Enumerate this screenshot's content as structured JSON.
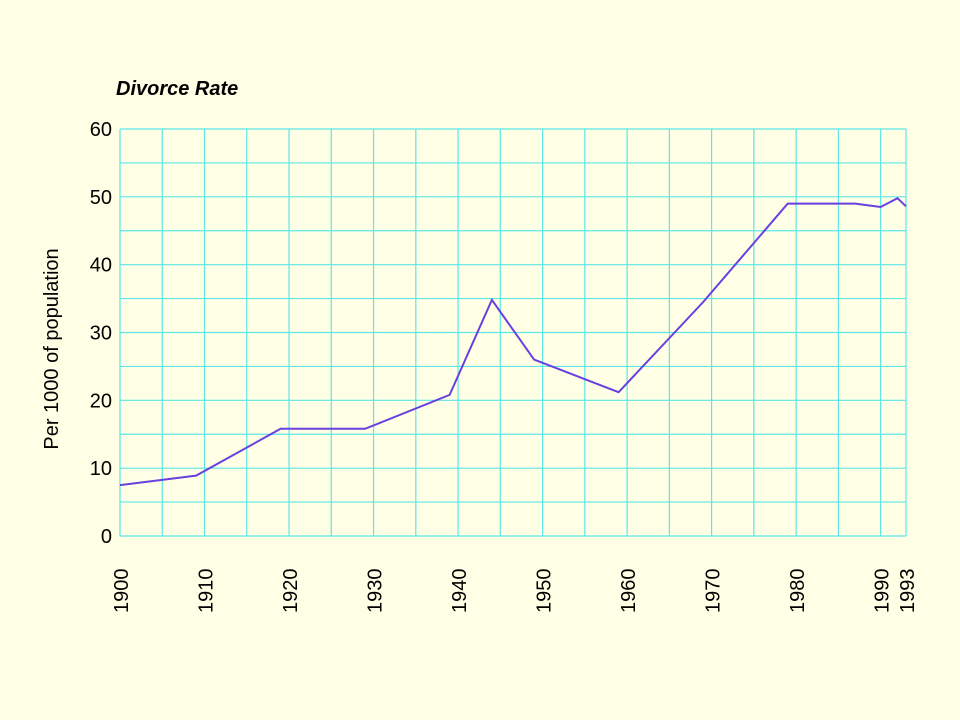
{
  "chart_data": {
    "type": "line",
    "title": "Divorce Rate",
    "xlabel": "",
    "ylabel": "Per 1000 of population",
    "x_tick_labels": [
      "1900",
      "1910",
      "1920",
      "1930",
      "1940",
      "1950",
      "1960",
      "1970",
      "1980",
      "1990",
      "1993"
    ],
    "x_ticks": [
      1900,
      1910,
      1920,
      1930,
      1940,
      1950,
      1960,
      1970,
      1980,
      1990,
      1993
    ],
    "y_tick_labels": [
      "0",
      "10",
      "20",
      "30",
      "40",
      "50",
      "60"
    ],
    "y_ticks": [
      0,
      10,
      20,
      30,
      40,
      50,
      60
    ],
    "xlim": [
      1900,
      1993
    ],
    "ylim": [
      0,
      60
    ],
    "grid": true,
    "colors": {
      "background": "#ffffe6",
      "grid": "#5ce6e6",
      "line": "#6a3fe0"
    },
    "series": [
      {
        "x": [
          1900,
          1909,
          1919,
          1929,
          1939,
          1944,
          1949,
          1959,
          1969,
          1979,
          1987,
          1990,
          1992,
          1993
        ],
        "y": [
          7.5,
          8.9,
          15.8,
          15.8,
          20.8,
          34.8,
          26,
          21.2,
          34.5,
          49,
          49,
          48.5,
          49.8,
          48.6
        ]
      }
    ]
  }
}
